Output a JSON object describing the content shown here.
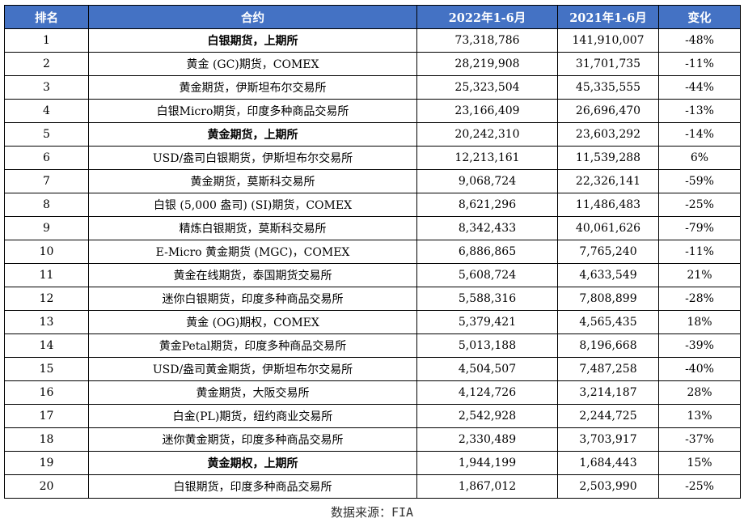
{
  "table": {
    "headers": [
      "排名",
      "合约",
      "2022年1-6月",
      "2021年1-6月",
      "变化"
    ],
    "rows": [
      {
        "rank": "1",
        "contract": "白银期货，上期所",
        "y2022": "73,318,786",
        "y2021": "141,910,007",
        "change": "-48%",
        "bold": true
      },
      {
        "rank": "2",
        "contract": "黄金 (GC)期货，COMEX",
        "y2022": "28,219,908",
        "y2021": "31,701,735",
        "change": "-11%",
        "bold": false
      },
      {
        "rank": "3",
        "contract": "黄金期货，伊斯坦布尔交易所",
        "y2022": "25,323,504",
        "y2021": "45,335,555",
        "change": "-44%",
        "bold": false
      },
      {
        "rank": "4",
        "contract": "白银Micro期货，印度多种商品交易所",
        "y2022": "23,166,409",
        "y2021": "26,696,470",
        "change": "-13%",
        "bold": false
      },
      {
        "rank": "5",
        "contract": "黄金期货，上期所",
        "y2022": "20,242,310",
        "y2021": "23,603,292",
        "change": "-14%",
        "bold": true
      },
      {
        "rank": "6",
        "contract": "USD/盎司白银期货，伊斯坦布尔交易所",
        "y2022": "12,213,161",
        "y2021": "11,539,288",
        "change": "6%",
        "bold": false
      },
      {
        "rank": "7",
        "contract": "黄金期货，莫斯科交易所",
        "y2022": "9,068,724",
        "y2021": "22,326,141",
        "change": "-59%",
        "bold": false
      },
      {
        "rank": "8",
        "contract": "白银 (5,000 盎司) (SI)期货，COMEX",
        "y2022": "8,621,296",
        "y2021": "11,486,483",
        "change": "-25%",
        "bold": false
      },
      {
        "rank": "9",
        "contract": "精炼白银期货，莫斯科交易所",
        "y2022": "8,342,433",
        "y2021": "40,061,626",
        "change": "-79%",
        "bold": false
      },
      {
        "rank": "10",
        "contract": "E-Micro 黄金期货 (MGC)，COMEX",
        "y2022": "6,886,865",
        "y2021": "7,765,240",
        "change": "-11%",
        "bold": false
      },
      {
        "rank": "11",
        "contract": "黄金在线期货，泰国期货交易所",
        "y2022": "5,608,724",
        "y2021": "4,633,549",
        "change": "21%",
        "bold": false
      },
      {
        "rank": "12",
        "contract": "迷你白银期货，印度多种商品交易所",
        "y2022": "5,588,316",
        "y2021": "7,808,899",
        "change": "-28%",
        "bold": false
      },
      {
        "rank": "13",
        "contract": "黄金 (OG)期权，COMEX",
        "y2022": "5,379,421",
        "y2021": "4,565,435",
        "change": "18%",
        "bold": false
      },
      {
        "rank": "14",
        "contract": "黄金Petal期货，印度多种商品交易所",
        "y2022": "5,013,188",
        "y2021": "8,196,668",
        "change": "-39%",
        "bold": false
      },
      {
        "rank": "15",
        "contract": "USD/盎司黄金期货，伊斯坦布尔交易所",
        "y2022": "4,504,507",
        "y2021": "7,487,258",
        "change": "-40%",
        "bold": false
      },
      {
        "rank": "16",
        "contract": "黄金期货，大阪交易所",
        "y2022": "4,124,726",
        "y2021": "3,214,187",
        "change": "28%",
        "bold": false
      },
      {
        "rank": "17",
        "contract": "白金(PL)期货，纽约商业交易所",
        "y2022": "2,542,928",
        "y2021": "2,244,725",
        "change": "13%",
        "bold": false
      },
      {
        "rank": "18",
        "contract": "迷你黄金期货，印度多种商品交易所",
        "y2022": "2,330,489",
        "y2021": "3,703,917",
        "change": "-37%",
        "bold": false
      },
      {
        "rank": "19",
        "contract": "黄金期权，上期所",
        "y2022": "1,944,199",
        "y2021": "1,684,443",
        "change": "15%",
        "bold": true
      },
      {
        "rank": "20",
        "contract": "白银期货，印度多种商品交易所",
        "y2022": "1,867,012",
        "y2021": "2,503,990",
        "change": "-25%",
        "bold": false
      }
    ]
  },
  "source": "数据来源：FIA",
  "colors": {
    "header_bg": "#4472c4",
    "header_text": "#ffffff",
    "border": "#000000"
  }
}
